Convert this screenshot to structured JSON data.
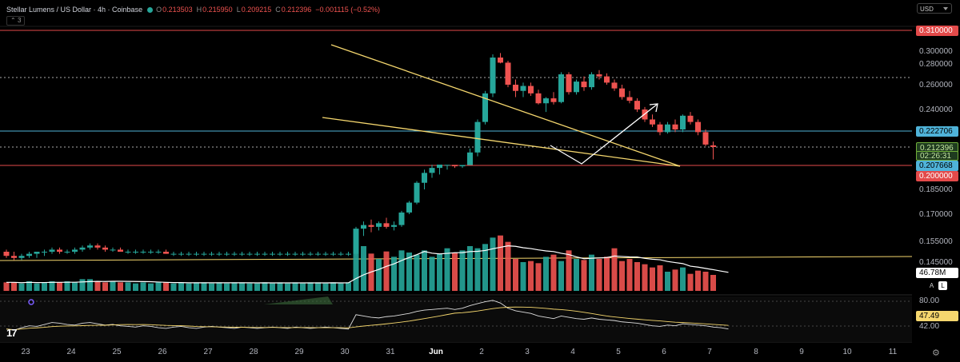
{
  "header": {
    "symbol": "Stellar Lumens / US Dollar · 4h · Coinbase",
    "o_label": "O",
    "o": "0.213503",
    "h_label": "H",
    "h": "0.215950",
    "l_label": "L",
    "l": "0.209215",
    "c_label": "C",
    "c": "0.212396",
    "change": "−0.001115 (−0.52%)",
    "indicators_count": "3"
  },
  "currency": "USD",
  "price_tags": {
    "upper_red": "0.310000",
    "blue": "0.222706",
    "last": "0.212396",
    "countdown": "02:26:31",
    "mid_blue": "0.207668",
    "lower_red": "0.200000",
    "volume": "46.78M",
    "rsi_avg": "47.49"
  },
  "y_axis": [
    "0.300000",
    "0.280000",
    "0.260000",
    "0.240000",
    "0.185000",
    "0.170000",
    "0.155000",
    "0.145000"
  ],
  "rsi_axis": [
    "80.00",
    "42.00"
  ],
  "x_axis": [
    "23",
    "24",
    "25",
    "26",
    "27",
    "28",
    "29",
    "30",
    "31",
    "Jun",
    "2",
    "3",
    "4",
    "5",
    "6",
    "7",
    "8",
    "9",
    "10",
    "11"
  ],
  "scale_buttons": {
    "auto": "A",
    "log": "L"
  },
  "colors": {
    "up": "#26a69a",
    "down": "#ef5350",
    "trend": "#f5d76e",
    "blue": "#4fb3d9",
    "red": "#e34a4a",
    "bg": "#000000"
  },
  "icons": [
    "tradingview-logo",
    "gear-icon",
    "eye-icon"
  ],
  "chart_data": {
    "type": "candlestick",
    "title": "Stellar Lumens / US Dollar · 4h · Coinbase",
    "interval": "4h",
    "x_range": [
      "May 23",
      "Jun 11"
    ],
    "ylim": [
      0.14,
      0.31
    ],
    "horizontal_levels": [
      0.31,
      0.222706,
      0.207668,
      0.2,
      0.267,
      0.212396
    ],
    "candles": [
      [
        0.15,
        0.151,
        0.147,
        0.148
      ],
      [
        0.148,
        0.15,
        0.146,
        0.147
      ],
      [
        0.147,
        0.149,
        0.146,
        0.148
      ],
      [
        0.148,
        0.15,
        0.147,
        0.149
      ],
      [
        0.149,
        0.15,
        0.147,
        0.15
      ],
      [
        0.15,
        0.151,
        0.148,
        0.15
      ],
      [
        0.15,
        0.152,
        0.149,
        0.151
      ],
      [
        0.151,
        0.152,
        0.149,
        0.15
      ],
      [
        0.15,
        0.151,
        0.149,
        0.15
      ],
      [
        0.15,
        0.152,
        0.149,
        0.151
      ],
      [
        0.151,
        0.153,
        0.15,
        0.152
      ],
      [
        0.152,
        0.154,
        0.151,
        0.153
      ],
      [
        0.153,
        0.154,
        0.151,
        0.152
      ],
      [
        0.152,
        0.153,
        0.15,
        0.151
      ],
      [
        0.151,
        0.152,
        0.15,
        0.151
      ],
      [
        0.151,
        0.152,
        0.15,
        0.15
      ],
      [
        0.15,
        0.151,
        0.149,
        0.15
      ],
      [
        0.15,
        0.151,
        0.149,
        0.15
      ],
      [
        0.15,
        0.151,
        0.149,
        0.15
      ],
      [
        0.15,
        0.151,
        0.149,
        0.15
      ],
      [
        0.15,
        0.151,
        0.149,
        0.15
      ],
      [
        0.15,
        0.151,
        0.149,
        0.149
      ],
      [
        0.149,
        0.15,
        0.148,
        0.149
      ],
      [
        0.149,
        0.15,
        0.148,
        0.149
      ],
      [
        0.149,
        0.15,
        0.148,
        0.149
      ],
      [
        0.149,
        0.15,
        0.148,
        0.149
      ],
      [
        0.149,
        0.15,
        0.148,
        0.149
      ],
      [
        0.149,
        0.15,
        0.148,
        0.149
      ],
      [
        0.149,
        0.15,
        0.148,
        0.149
      ],
      [
        0.149,
        0.15,
        0.148,
        0.149
      ],
      [
        0.149,
        0.15,
        0.148,
        0.149
      ],
      [
        0.149,
        0.15,
        0.148,
        0.149
      ],
      [
        0.149,
        0.15,
        0.148,
        0.149
      ],
      [
        0.149,
        0.15,
        0.148,
        0.149
      ],
      [
        0.149,
        0.15,
        0.148,
        0.149
      ],
      [
        0.149,
        0.15,
        0.148,
        0.149
      ],
      [
        0.149,
        0.15,
        0.148,
        0.149
      ],
      [
        0.149,
        0.15,
        0.148,
        0.149
      ],
      [
        0.149,
        0.15,
        0.148,
        0.149
      ],
      [
        0.149,
        0.15,
        0.148,
        0.149
      ],
      [
        0.149,
        0.15,
        0.148,
        0.149
      ],
      [
        0.149,
        0.15,
        0.148,
        0.149
      ],
      [
        0.149,
        0.15,
        0.148,
        0.149
      ],
      [
        0.149,
        0.15,
        0.148,
        0.149
      ],
      [
        0.149,
        0.15,
        0.148,
        0.149
      ],
      [
        0.149,
        0.15,
        0.148,
        0.149
      ],
      [
        0.149,
        0.163,
        0.148,
        0.162
      ],
      [
        0.162,
        0.166,
        0.158,
        0.164
      ],
      [
        0.164,
        0.167,
        0.16,
        0.163
      ],
      [
        0.163,
        0.166,
        0.161,
        0.165
      ],
      [
        0.165,
        0.168,
        0.162,
        0.163
      ],
      [
        0.163,
        0.166,
        0.161,
        0.164
      ],
      [
        0.164,
        0.172,
        0.163,
        0.171
      ],
      [
        0.171,
        0.178,
        0.17,
        0.177
      ],
      [
        0.177,
        0.19,
        0.176,
        0.189
      ],
      [
        0.189,
        0.197,
        0.185,
        0.195
      ],
      [
        0.195,
        0.201,
        0.192,
        0.198
      ],
      [
        0.198,
        0.205,
        0.194,
        0.2
      ],
      [
        0.2,
        0.204,
        0.197,
        0.202
      ],
      [
        0.202,
        0.204,
        0.198,
        0.199
      ],
      [
        0.199,
        0.205,
        0.198,
        0.204
      ],
      [
        0.204,
        0.212,
        0.202,
        0.211
      ],
      [
        0.211,
        0.232,
        0.21,
        0.23
      ],
      [
        0.23,
        0.255,
        0.228,
        0.253
      ],
      [
        0.253,
        0.295,
        0.25,
        0.29
      ],
      [
        0.29,
        0.297,
        0.281,
        0.282
      ],
      [
        0.282,
        0.285,
        0.258,
        0.26
      ],
      [
        0.26,
        0.265,
        0.25,
        0.255
      ],
      [
        0.255,
        0.262,
        0.25,
        0.259
      ],
      [
        0.259,
        0.262,
        0.251,
        0.253
      ],
      [
        0.253,
        0.256,
        0.244,
        0.245
      ],
      [
        0.245,
        0.25,
        0.238,
        0.249
      ],
      [
        0.249,
        0.254,
        0.244,
        0.246
      ],
      [
        0.246,
        0.272,
        0.245,
        0.27
      ],
      [
        0.27,
        0.272,
        0.252,
        0.254
      ],
      [
        0.254,
        0.265,
        0.252,
        0.263
      ],
      [
        0.263,
        0.268,
        0.255,
        0.258
      ],
      [
        0.258,
        0.272,
        0.256,
        0.27
      ],
      [
        0.27,
        0.274,
        0.265,
        0.268
      ],
      [
        0.268,
        0.271,
        0.26,
        0.262
      ],
      [
        0.262,
        0.265,
        0.255,
        0.257
      ],
      [
        0.257,
        0.26,
        0.248,
        0.25
      ],
      [
        0.25,
        0.255,
        0.245,
        0.247
      ],
      [
        0.247,
        0.249,
        0.238,
        0.24
      ],
      [
        0.24,
        0.242,
        0.23,
        0.232
      ],
      [
        0.232,
        0.236,
        0.226,
        0.228
      ],
      [
        0.228,
        0.23,
        0.22,
        0.222
      ],
      [
        0.222,
        0.23,
        0.221,
        0.228
      ],
      [
        0.228,
        0.232,
        0.222,
        0.224
      ],
      [
        0.224,
        0.236,
        0.222,
        0.235
      ],
      [
        0.235,
        0.238,
        0.228,
        0.23
      ],
      [
        0.23,
        0.232,
        0.22,
        0.222
      ],
      [
        0.222,
        0.224,
        0.213,
        0.214
      ],
      [
        0.213503,
        0.21595,
        0.209215,
        0.212396
      ]
    ],
    "volume": [
      8,
      8,
      7,
      9,
      7,
      8,
      9,
      8,
      9,
      8,
      11,
      11,
      9,
      8,
      9,
      8,
      8,
      7,
      8,
      7,
      8,
      8,
      7,
      8,
      7,
      8,
      8,
      7,
      8,
      7,
      8,
      8,
      7,
      7,
      8,
      7,
      8,
      7,
      8,
      7,
      8,
      8,
      7,
      8,
      7,
      8,
      48,
      42,
      35,
      30,
      37,
      32,
      38,
      36,
      34,
      38,
      32,
      35,
      40,
      36,
      38,
      42,
      40,
      44,
      50,
      52,
      46,
      30,
      27,
      28,
      26,
      32,
      34,
      28,
      38,
      30,
      29,
      34,
      30,
      32,
      40,
      28,
      30,
      27,
      25,
      22,
      24,
      18,
      20,
      22,
      16,
      19,
      18,
      15,
      12,
      10
    ],
    "rsi": [
      40,
      38,
      42,
      45,
      44,
      47,
      50,
      49,
      47,
      46,
      49,
      50,
      48,
      46,
      47,
      45,
      44,
      43,
      45,
      44,
      42,
      41,
      43,
      44,
      42,
      41,
      43,
      44,
      43,
      42,
      41,
      43,
      42,
      41,
      42,
      43,
      42,
      41,
      43,
      42,
      41,
      42,
      43,
      42,
      41,
      40,
      62,
      60,
      58,
      57,
      59,
      60,
      62,
      64,
      67,
      69,
      70,
      71,
      72,
      70,
      72,
      76,
      79,
      82,
      84,
      80,
      72,
      68,
      66,
      64,
      60,
      58,
      56,
      60,
      58,
      56,
      55,
      57,
      55,
      54,
      53,
      51,
      50,
      49,
      47,
      45,
      44,
      46,
      45,
      48,
      47,
      46,
      45,
      43,
      42,
      40
    ]
  }
}
